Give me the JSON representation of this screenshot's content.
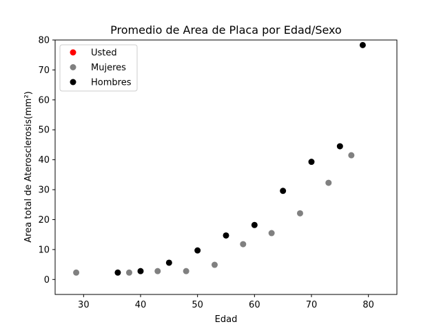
{
  "chart_data": {
    "type": "scatter",
    "title": "Promedio de Area de Placa por Edad/Sexo",
    "xlabel": "Edad",
    "ylabel": "Area total de Aterosclerosis(mm²)",
    "xlim": [
      25,
      85
    ],
    "ylim": [
      -5,
      80
    ],
    "xticks": [
      30,
      40,
      50,
      60,
      70,
      80
    ],
    "yticks": [
      0,
      10,
      20,
      30,
      40,
      50,
      60,
      70,
      80
    ],
    "legend_position": "top-left",
    "grid": false,
    "series": [
      {
        "name": "Usted",
        "color": "#ff0000",
        "x": [],
        "y": []
      },
      {
        "name": "Mujeres",
        "color": "#808080",
        "x": [
          28.7,
          38,
          43,
          48,
          53,
          58,
          63,
          68,
          73,
          77
        ],
        "y": [
          2.3,
          2.3,
          2.8,
          2.8,
          4.9,
          11.8,
          15.5,
          22.1,
          32.3,
          41.5
        ]
      },
      {
        "name": "Hombres",
        "color": "#000000",
        "x": [
          36,
          40,
          45,
          50,
          55,
          60,
          65,
          70,
          75,
          79
        ],
        "y": [
          2.3,
          2.8,
          5.6,
          9.7,
          14.7,
          18.2,
          29.6,
          39.3,
          44.5,
          78.3
        ]
      }
    ]
  }
}
